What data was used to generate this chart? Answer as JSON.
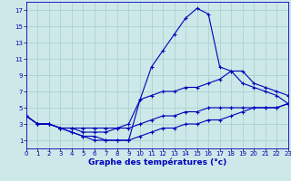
{
  "title": "",
  "xlabel": "Graphe des températures (°c)",
  "ylabel": "",
  "background_color": "#cce8e8",
  "grid_color": "#aacccc",
  "line_color": "#0000bb",
  "hours": [
    0,
    1,
    2,
    3,
    4,
    5,
    6,
    7,
    8,
    9,
    10,
    11,
    12,
    13,
    14,
    15,
    16,
    17,
    18,
    19,
    20,
    21,
    22,
    23
  ],
  "series": {
    "line1_max": [
      4.0,
      3.0,
      3.0,
      2.5,
      2.0,
      1.5,
      1.5,
      1.0,
      1.0,
      1.0,
      6.0,
      10.0,
      12.0,
      14.0,
      16.0,
      17.2,
      16.5,
      10.0,
      9.5,
      8.0,
      7.5,
      7.0,
      6.5,
      5.5
    ],
    "line2_mean": [
      4.0,
      3.0,
      3.0,
      2.5,
      2.5,
      2.0,
      2.0,
      2.0,
      2.5,
      3.0,
      6.0,
      6.5,
      7.0,
      7.0,
      7.5,
      7.5,
      8.0,
      8.5,
      9.5,
      9.5,
      8.0,
      7.5,
      7.0,
      6.5
    ],
    "line3_min": [
      4.0,
      3.0,
      3.0,
      2.5,
      2.5,
      2.5,
      2.5,
      2.5,
      2.5,
      2.5,
      3.0,
      3.5,
      4.0,
      4.0,
      4.5,
      4.5,
      5.0,
      5.0,
      5.0,
      5.0,
      5.0,
      5.0,
      5.0,
      5.5
    ],
    "line4_low": [
      4.0,
      3.0,
      3.0,
      2.5,
      2.0,
      1.5,
      1.0,
      1.0,
      1.0,
      1.0,
      1.5,
      2.0,
      2.5,
      2.5,
      3.0,
      3.0,
      3.5,
      3.5,
      4.0,
      4.5,
      5.0,
      5.0,
      5.0,
      5.5
    ]
  },
  "xlim": [
    0,
    23
  ],
  "ylim": [
    0,
    18
  ],
  "xticks": [
    0,
    1,
    2,
    3,
    4,
    5,
    6,
    7,
    8,
    9,
    10,
    11,
    12,
    13,
    14,
    15,
    16,
    17,
    18,
    19,
    20,
    21,
    22,
    23
  ],
  "yticks": [
    1,
    3,
    5,
    7,
    9,
    11,
    13,
    15,
    17
  ],
  "marker": "+",
  "markersize": 3.5,
  "linewidth": 0.8,
  "tick_fontsize": 5.0,
  "xlabel_fontsize": 6.5
}
